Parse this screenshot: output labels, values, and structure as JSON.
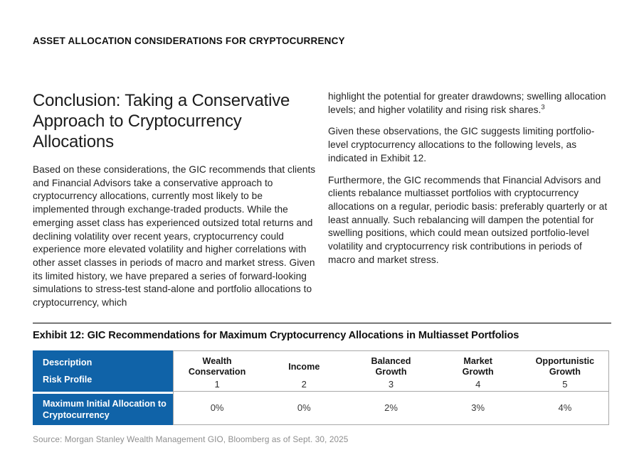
{
  "page": {
    "kicker": "ASSET ALLOCATION CONSIDERATIONS FOR CRYPTOCURRENCY"
  },
  "article": {
    "title_lines": [
      "Conclusion: Taking a Conservative",
      "Approach to Cryptocurrency",
      "Allocations"
    ],
    "left_paragraph": "Based on these considerations, the GIC recommends that clients and Financial Advisors take a conservative approach to cryptocurrency allocations, currently most likely to be implemented through exchange-traded products. While the emerging asset class has experienced outsized total returns and declining volatility over recent years, cryptocurrency could experience more elevated volatility and higher correlations with other asset classes in periods of macro and market stress. Given its limited history, we have prepared a series of forward-looking simulations to stress-test stand-alone and portfolio allocations to cryptocurrency, which",
    "right_paragraph_1": "highlight the potential for greater drawdowns; swelling allocation levels; and higher volatility and rising risk shares.",
    "footnote_marker": "3",
    "right_paragraph_2": "Given these observations, the GIC suggests limiting portfolio-level cryptocurrency allocations to the following levels, as indicated in Exhibit 12.",
    "right_paragraph_3": "Furthermore, the GIC recommends that Financial Advisors and clients rebalance multiasset portfolios with cryptocurrency allocations on a regular, periodic basis: preferably quarterly or at least annually. Such rebalancing will dampen the potential for swelling positions, which could mean outsized portfolio-level volatility and cryptocurrency risk contributions in periods of macro and market stress."
  },
  "exhibit": {
    "title": "Exhibit 12: GIC Recommendations for Maximum Cryptocurrency Allocations in Multiasset Portfolios",
    "source": "Source: Morgan Stanley Wealth Management GIO, Bloomberg as of Sept. 30, 2025"
  },
  "table": {
    "brand_blue": "#1063a8",
    "row_header_top": "Description",
    "row_header_bottom": "Risk Profile",
    "row_label": "Maximum Initial Allocation to\nCryptocurrency",
    "columns": [
      {
        "name": "Wealth\nConservation",
        "profile": "1",
        "value": "0%"
      },
      {
        "name": "Income",
        "profile": "2",
        "value": "0%"
      },
      {
        "name": "Balanced\nGrowth",
        "profile": "3",
        "value": "2%"
      },
      {
        "name": "Market\nGrowth",
        "profile": "4",
        "value": "3%"
      },
      {
        "name": "Opportunistic\nGrowth",
        "profile": "5",
        "value": "4%"
      }
    ]
  },
  "chart_data": {
    "type": "table",
    "title": "Exhibit 12: GIC Recommendations for Maximum Cryptocurrency Allocations in Multiasset Portfolios",
    "categories": [
      "Wealth Conservation",
      "Income",
      "Balanced Growth",
      "Market Growth",
      "Opportunistic Growth"
    ],
    "risk_profiles": [
      1,
      2,
      3,
      4,
      5
    ],
    "series": [
      {
        "name": "Maximum Initial Allocation to Cryptocurrency",
        "values": [
          "0%",
          "0%",
          "2%",
          "3%",
          "4%"
        ]
      }
    ]
  }
}
